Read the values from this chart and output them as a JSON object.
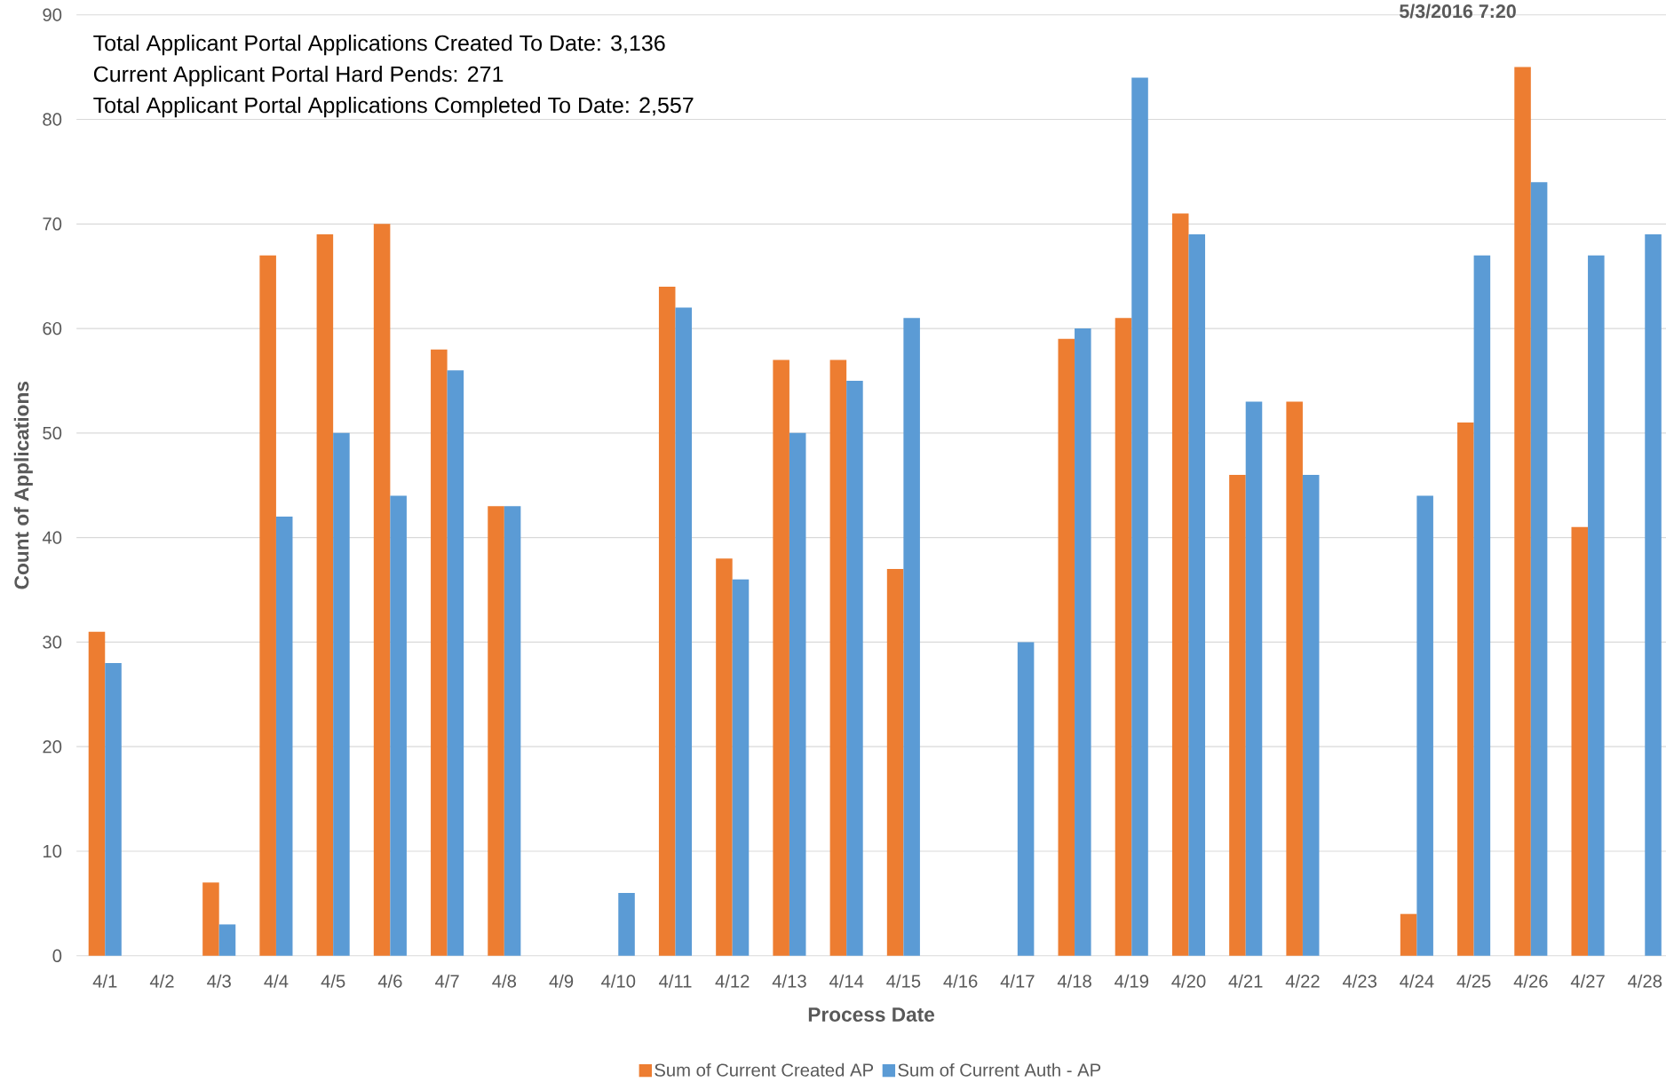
{
  "chart_data": {
    "type": "bar",
    "xlabel": "Process Date",
    "ylabel": "Count of Applications",
    "categories": [
      "4/1",
      "4/2",
      "4/3",
      "4/4",
      "4/5",
      "4/6",
      "4/7",
      "4/8",
      "4/9",
      "4/10",
      "4/11",
      "4/12",
      "4/13",
      "4/14",
      "4/15",
      "4/16",
      "4/17",
      "4/18",
      "4/19",
      "4/20",
      "4/21",
      "4/22",
      "4/23",
      "4/24",
      "4/25",
      "4/26",
      "4/27",
      "4/28"
    ],
    "series": [
      {
        "name": "Sum of Current Created AP",
        "color": "#ed7d31",
        "values": [
          31,
          null,
          7,
          67,
          69,
          70,
          58,
          43,
          null,
          null,
          64,
          38,
          57,
          57,
          37,
          null,
          null,
          59,
          61,
          71,
          46,
          53,
          null,
          4,
          51,
          85,
          41,
          null
        ]
      },
      {
        "name": "Sum of Current Auth - AP",
        "color": "#5b9bd5",
        "values": [
          28,
          null,
          3,
          42,
          50,
          44,
          56,
          43,
          null,
          6,
          62,
          36,
          50,
          55,
          61,
          null,
          30,
          60,
          84,
          69,
          53,
          46,
          null,
          44,
          67,
          74,
          67,
          69
        ]
      }
    ],
    "ylim": [
      0,
      90
    ],
    "yticks": [
      0,
      10,
      20,
      30,
      40,
      50,
      60,
      70,
      80,
      90
    ],
    "grid": "y",
    "legend": "bottom",
    "annotations": [
      "Total Applicant Portal Applications Created To Date: 3,136",
      "Current Applicant Portal Hard Pends: 271",
      "Total Applicant Portal Applications Completed To Date: 2,557",
      "5/3/2016 7:20"
    ]
  }
}
